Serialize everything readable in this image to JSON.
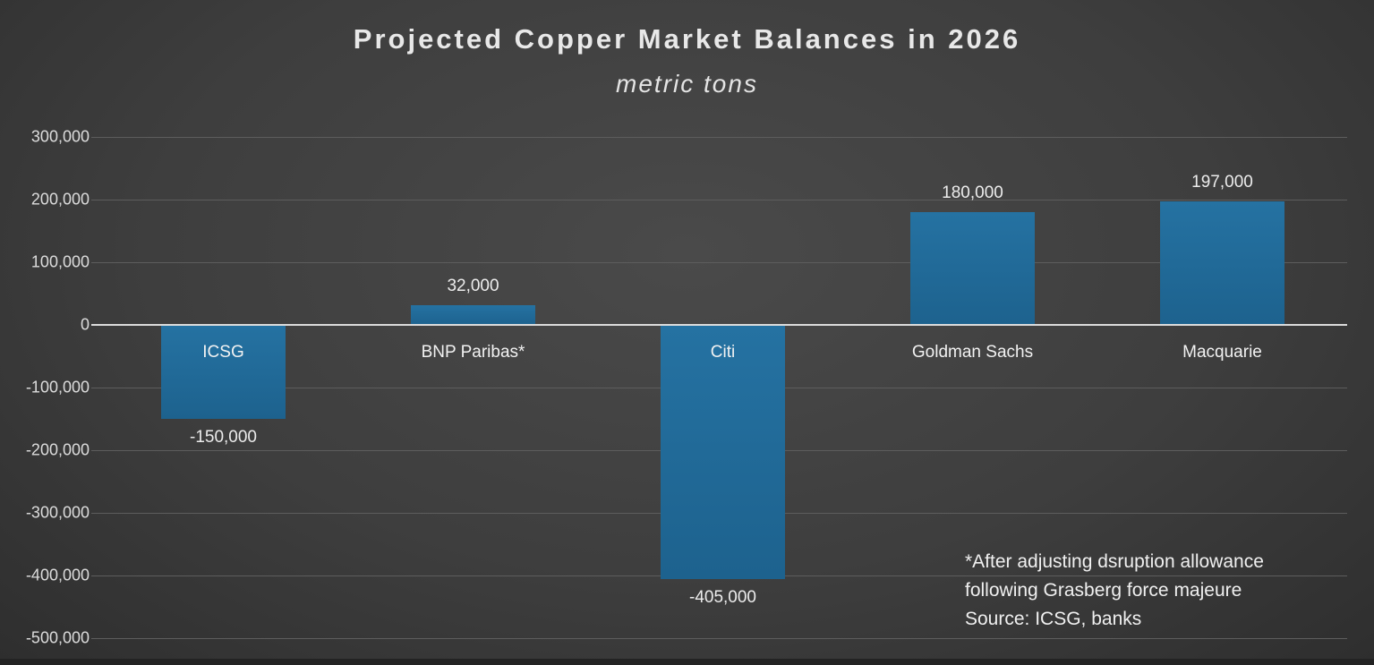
{
  "title": "Projected Copper Market Balances in 2026",
  "subtitle": "metric tons",
  "annotation": {
    "line1": "*After adjusting dsruption allowance",
    "line2": "following Grasberg force majeure",
    "line3": "Source: ICSG, banks"
  },
  "colors": {
    "bar": "#1f6a97",
    "background": "#3e3e3e",
    "gridline": "#5d5d5d",
    "zero_line": "#dcdcdc",
    "text": "#e8e8e8"
  },
  "chart_data": {
    "type": "bar",
    "title": "Projected Copper Market Balances in 2026",
    "subtitle": "metric tons",
    "categories": [
      "ICSG",
      "BNP Paribas*",
      "Citi",
      "Goldman Sachs",
      "Macquarie"
    ],
    "values": [
      -150000,
      32000,
      -405000,
      180000,
      197000
    ],
    "value_labels": [
      "-150,000",
      "32,000",
      "-405,000",
      "180,000",
      "197,000"
    ],
    "xlabel": "",
    "ylabel": "",
    "ylim": [
      -500000,
      300000
    ],
    "ytick_step": 100000,
    "yticks": [
      300000,
      200000,
      100000,
      0,
      -100000,
      -200000,
      -300000,
      -400000,
      -500000
    ],
    "ytick_labels": [
      "300,000",
      "200,000",
      "100,000",
      "0",
      "-100,000",
      "-200,000",
      "-300,000",
      "-400,000",
      "-500,000"
    ],
    "grid": true,
    "legend": "none",
    "annotation": "*After adjusting dsruption allowance following Grasberg force majeure Source: ICSG, banks"
  }
}
